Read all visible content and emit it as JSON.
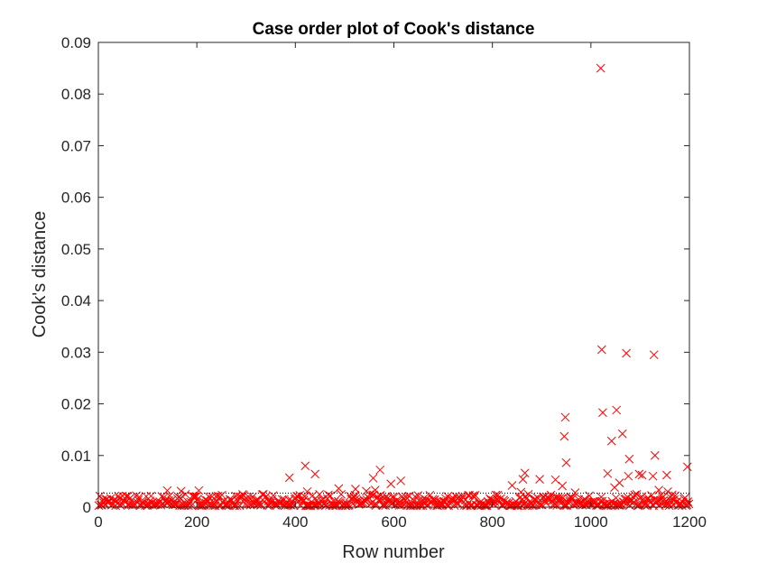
{
  "colors": {
    "marker": "#ff0000",
    "axis": "#262626",
    "threshold": "#000000",
    "background": "#ffffff"
  },
  "chart_data": {
    "type": "scatter",
    "title": "Case order plot of Cook's distance",
    "xlabel": "Row number",
    "ylabel": "Cook's distance",
    "xlim": [
      0,
      1200
    ],
    "ylim": [
      0,
      0.09
    ],
    "x_ticks": [
      0,
      200,
      400,
      600,
      800,
      1000,
      1200
    ],
    "x_tick_labels": [
      "0",
      "200",
      "400",
      "600",
      "800",
      "1000",
      "1200"
    ],
    "y_ticks": [
      0,
      0.01,
      0.02,
      0.03,
      0.04,
      0.05,
      0.06,
      0.07,
      0.08,
      0.09
    ],
    "y_tick_labels": [
      "0",
      "0.01",
      "0.02",
      "0.03",
      "0.04",
      "0.05",
      "0.06",
      "0.07",
      "0.08",
      "0.09"
    ],
    "marker": "x",
    "grid": false,
    "threshold_line": {
      "y": 0.0027,
      "style": "dotted"
    },
    "series": [
      {
        "points": [
          [
            1020,
            0.085
          ],
          [
            1022,
            0.0305
          ],
          [
            1072,
            0.0298
          ],
          [
            1128,
            0.0295
          ],
          [
            1024,
            0.0183
          ],
          [
            1052,
            0.0188
          ],
          [
            948,
            0.0174
          ],
          [
            1064,
            0.0142
          ],
          [
            946,
            0.0137
          ],
          [
            1042,
            0.0128
          ],
          [
            1130,
            0.01
          ],
          [
            1078,
            0.0093
          ],
          [
            950,
            0.0086
          ],
          [
            420,
            0.008
          ],
          [
            1196,
            0.0078
          ],
          [
            572,
            0.0072
          ],
          [
            1034,
            0.0065
          ],
          [
            866,
            0.0066
          ],
          [
            440,
            0.0064
          ],
          [
            1098,
            0.0064
          ],
          [
            1104,
            0.0062
          ],
          [
            1154,
            0.0062
          ],
          [
            1126,
            0.006
          ],
          [
            1076,
            0.006
          ],
          [
            388,
            0.0057
          ],
          [
            558,
            0.0056
          ],
          [
            862,
            0.0054
          ],
          [
            896,
            0.0054
          ],
          [
            928,
            0.0053
          ],
          [
            614,
            0.0051
          ],
          [
            1058,
            0.0047
          ],
          [
            594,
            0.0045
          ],
          [
            840,
            0.0042
          ],
          [
            942,
            0.0041
          ],
          [
            488,
            0.0036
          ],
          [
            1048,
            0.0038
          ],
          [
            1138,
            0.0033
          ],
          [
            522,
            0.0035
          ],
          [
            562,
            0.0033
          ],
          [
            544,
            0.0031
          ],
          [
            140,
            0.0032
          ],
          [
            168,
            0.0031
          ],
          [
            204,
            0.0032
          ],
          [
            424,
            0.003
          ],
          [
            1156,
            0.003
          ],
          [
            858,
            0.0029
          ],
          [
            968,
            0.0028
          ]
        ]
      }
    ]
  }
}
